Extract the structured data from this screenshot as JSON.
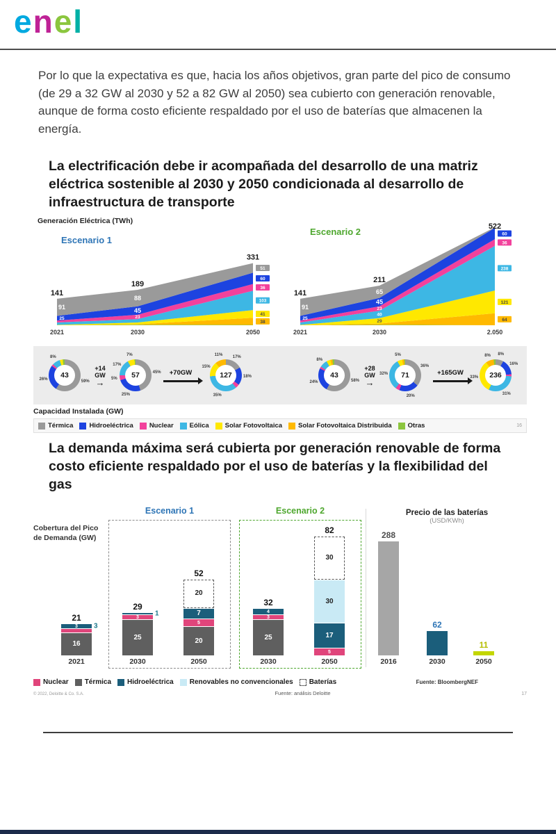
{
  "logo": {
    "letters": [
      "e",
      "n",
      "e",
      "l"
    ],
    "colors": [
      "#00a9e0",
      "#bf2296",
      "#8bc63e",
      "#00b0a6"
    ]
  },
  "intro_paragraph": "Por lo que la expectativa es que, hacia los años objetivos, gran parte del pico de consumo (de 29 a 32 GW al 2030 y 52 a 82 GW al 2050) sea cubierto con generación renovable, aunque de forma costo eficiente respaldado por el uso de baterías que almacenen la energía.",
  "slide1": {
    "title": "La electrificación debe ir acompañada del desarrollo de una matriz eléctrica sostenible al 2030 y 2050 condicionada al desarrollo de infraestructura de transporte",
    "y_axis_label": "Generación Eléctrica (TWh)",
    "scenario1_label": "Escenario 1",
    "scenario2_label": "Escenario 2",
    "capacity_label": "Capacidad Instalada (GW)",
    "page_number": "16",
    "legend": [
      {
        "label": "Térmica",
        "color": "#9a9a9a"
      },
      {
        "label": "Hidroeléctrica",
        "color": "#1d43e0"
      },
      {
        "label": "Nuclear",
        "color": "#f2419c"
      },
      {
        "label": "Eólica",
        "color": "#3db7e4"
      },
      {
        "label": "Solar Fotovoltaica",
        "color": "#ffe800"
      },
      {
        "label": "Solar Fotovoltaica Distribuida",
        "color": "#ffb900"
      },
      {
        "label": "Otras",
        "color": "#8cc63f"
      }
    ]
  },
  "slide2": {
    "title": "La demanda máxima será cubierta por generación renovable de forma costo eficiente respaldado por el uso de baterías y la flexibilidad del gas",
    "left_chart_label": "Cobertura del Pico de Demanda (GW)",
    "scenario1_label": "Escenario 1",
    "scenario2_label": "Escenario 2",
    "right_chart_title": "Precio de las baterías",
    "right_chart_unit": "(USD/KWh)",
    "legend": [
      {
        "label": "Nuclear",
        "color": "#e0457b"
      },
      {
        "label": "Térmica",
        "color": "#5f5f5f"
      },
      {
        "label": "Hidroeléctrica",
        "color": "#1b5e7b"
      },
      {
        "label": "Renovables no convencionales",
        "color": "#c9eaf5"
      },
      {
        "label": "Baterías",
        "color": "#ffffff",
        "dashed": true
      }
    ],
    "source_left": "Fuente: análisis Deloitte",
    "source_right": "Fuente: BloombergNEF",
    "copyright": "© 2022, Deloitte & Co. S.A.",
    "page_number": "17"
  },
  "chart_data": [
    {
      "id": "generacion_escenario_1",
      "type": "area",
      "title": "Escenario 1",
      "unit": "TWh",
      "x": [
        "2021",
        "2030",
        "2050"
      ],
      "totals": [
        141,
        189,
        331
      ],
      "series": [
        {
          "name": "Térmica",
          "color": "#9a9a9a",
          "values": [
            91,
            88,
            51
          ]
        },
        {
          "name": "Hidroeléctrica",
          "color": "#1d43e0",
          "values": [
            25,
            45,
            60
          ]
        },
        {
          "name": "Nuclear",
          "color": "#f2419c",
          "values": [
            10,
            23,
            36
          ]
        },
        {
          "name": "Eólica",
          "color": "#3db7e4",
          "values": [
            13,
            18,
            103
          ]
        },
        {
          "name": "Solar Fotovoltaica",
          "color": "#ffe800",
          "values": [
            2,
            10,
            41
          ]
        },
        {
          "name": "Solar Fotovoltaica Distribuida",
          "color": "#ffb900",
          "values": [
            0,
            2,
            38
          ]
        },
        {
          "name": "Otras",
          "color": "#8cc63f",
          "values": [
            0,
            3,
            2
          ]
        }
      ]
    },
    {
      "id": "generacion_escenario_2",
      "type": "area",
      "title": "Escenario 2",
      "unit": "TWh",
      "x": [
        "2021",
        "2030",
        "2.050"
      ],
      "totals": [
        141,
        211,
        522
      ],
      "series": [
        {
          "name": "Térmica",
          "color": "#9a9a9a",
          "values": [
            91,
            65,
            3
          ]
        },
        {
          "name": "Hidroeléctrica",
          "color": "#1d43e0",
          "values": [
            25,
            45,
            60
          ]
        },
        {
          "name": "Nuclear",
          "color": "#f2419c",
          "values": [
            10,
            23,
            36
          ]
        },
        {
          "name": "Eólica",
          "color": "#3db7e4",
          "values": [
            13,
            40,
            238
          ]
        },
        {
          "name": "Solar Fotovoltaica",
          "color": "#ffe800",
          "values": [
            2,
            29,
            121
          ]
        },
        {
          "name": "Solar Fotovoltaica Distribuida",
          "color": "#ffb900",
          "values": [
            0,
            6,
            64
          ]
        },
        {
          "name": "Otras",
          "color": "#8cc63f",
          "values": [
            0,
            3,
            0
          ]
        }
      ]
    },
    {
      "id": "capacidad_escenario_1",
      "type": "donut-sequence",
      "title": "Capacidad Instalada Escenario 1",
      "unit": "GW",
      "segment_order": [
        "Térmica",
        "Hidroeléctrica",
        "Nuclear",
        "Eólica",
        "Solar Fotovoltaica",
        "Solar Fotovoltaica Distribuida",
        "Otras"
      ],
      "donuts": [
        {
          "year": "2021",
          "total": 43,
          "pcts": [
            59,
            26,
            2,
            8,
            3,
            0,
            2
          ]
        },
        {
          "year": "2030",
          "total": 57,
          "pcts": [
            45,
            25,
            5,
            17,
            7,
            0,
            1
          ]
        },
        {
          "year": "2050",
          "total": 127,
          "pcts": [
            17,
            18,
            4,
            35,
            15,
            11,
            0
          ]
        }
      ],
      "arrows": [
        "+14 GW",
        "+70GW"
      ]
    },
    {
      "id": "capacidad_escenario_2",
      "type": "donut-sequence",
      "title": "Capacidad Instalada Escenario 2",
      "unit": "GW",
      "segment_order": [
        "Térmica",
        "Hidroeléctrica",
        "Nuclear",
        "Eólica",
        "Solar Fotovoltaica",
        "Solar Fotovoltaica Distribuida",
        "Otras"
      ],
      "donuts": [
        {
          "year": "2021",
          "total": 43,
          "pcts": [
            58,
            24,
            2,
            8,
            4,
            2,
            2
          ]
        },
        {
          "year": "2030",
          "total": 71,
          "pcts": [
            36,
            20,
            4,
            32,
            5,
            2,
            1
          ]
        },
        {
          "year": "2050",
          "total": 236,
          "pcts": [
            8,
            16,
            2,
            31,
            33,
            8,
            2
          ]
        }
      ],
      "arrows": [
        "+28 GW",
        "+165GW"
      ]
    },
    {
      "id": "pico_demanda",
      "type": "bar-stacked",
      "title": "Cobertura del Pico de Demanda (GW)",
      "unit": "GW",
      "groups": [
        {
          "year": "2021",
          "scenario": null,
          "total": 21,
          "segments": [
            {
              "name": "Térmica",
              "value": 16
            },
            {
              "name": "Nuclear",
              "value": 2
            },
            {
              "name": "Hidroeléctrica",
              "value": 3,
              "side_label": "3"
            }
          ]
        },
        {
          "year": "2030",
          "scenario": "Escenario 1",
          "total": 29,
          "segments": [
            {
              "name": "Térmica",
              "value": 25
            },
            {
              "name": "Nuclear",
              "value": 3
            },
            {
              "name": "Hidroeléctrica",
              "value": 1,
              "side_label": "1"
            }
          ]
        },
        {
          "year": "2050",
          "scenario": "Escenario 1",
          "total": 52,
          "segments": [
            {
              "name": "Térmica",
              "value": 20
            },
            {
              "name": "Nuclear",
              "value": 5
            },
            {
              "name": "Hidroeléctrica",
              "value": 7
            },
            {
              "name": "Baterías",
              "value": 20
            }
          ]
        },
        {
          "year": "2030",
          "scenario": "Escenario 2",
          "total": 32,
          "segments": [
            {
              "name": "Térmica",
              "value": 25
            },
            {
              "name": "Nuclear",
              "value": 3
            },
            {
              "name": "Hidroeléctrica",
              "value": 4
            }
          ]
        },
        {
          "year": "2050",
          "scenario": "Escenario 2",
          "total": 82,
          "segments": [
            {
              "name": "Nuclear",
              "value": 5
            },
            {
              "name": "Hidroeléctrica",
              "value": 17
            },
            {
              "name": "Renovables no convencionales",
              "value": 30
            },
            {
              "name": "Baterías",
              "value": 30
            }
          ]
        }
      ]
    },
    {
      "id": "precio_baterias",
      "type": "bar",
      "title": "Precio de las baterías",
      "unit": "USD/KWh",
      "categories": [
        "2016",
        "2030",
        "2050"
      ],
      "values": [
        288,
        62,
        11
      ],
      "colors": [
        "#a6a6a6",
        "#1b5e7b",
        "#c3d600"
      ],
      "label_colors": [
        "#4d4d4d",
        "#2e75b6",
        "#b5bd00"
      ]
    }
  ]
}
